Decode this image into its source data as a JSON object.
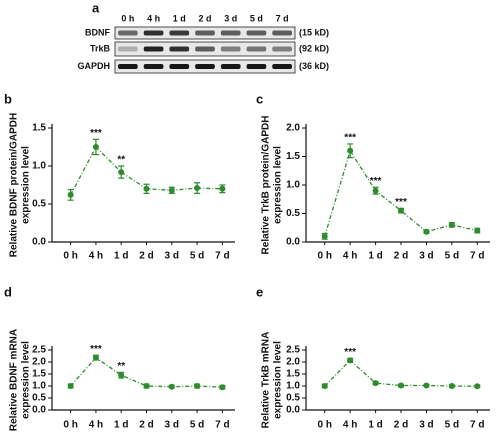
{
  "blot": {
    "panel": "a",
    "lanes": [
      "0 h",
      "4 h",
      "1 d",
      "2 d",
      "3 d",
      "5 d",
      "7 d"
    ],
    "proteins": [
      {
        "name": "BDNF",
        "size": "(15 kD)"
      },
      {
        "name": "TrkB",
        "size": "(92 kD)"
      },
      {
        "name": "GAPDH",
        "size": "(36 kD)"
      }
    ]
  },
  "chart_data": [
    {
      "type": "line",
      "panel": "b",
      "ylabel": [
        "Relative BDNF protein/GAPDH",
        "expression level"
      ],
      "categories": [
        "0 h",
        "4 h",
        "1 d",
        "2 d",
        "3 d",
        "5 d",
        "7 d"
      ],
      "values": [
        0.62,
        1.25,
        0.92,
        0.7,
        0.68,
        0.71,
        0.7
      ],
      "errors": [
        0.07,
        0.1,
        0.08,
        0.06,
        0.04,
        0.07,
        0.05
      ],
      "significance": [
        null,
        "***",
        "**",
        null,
        null,
        null,
        null
      ],
      "color": "#2e8b2e",
      "ylim": [
        0,
        1.5
      ],
      "yticks": [
        {
          "value": 0,
          "label": "0.0"
        },
        0.5,
        {
          "value": 1,
          "label": "1.0"
        },
        1.5
      ]
    },
    {
      "type": "line",
      "panel": "c",
      "ylabel": [
        "Relative TrkB protein/GAPDH",
        "expression level"
      ],
      "categories": [
        "0 h",
        "4 h",
        "1 d",
        "2 d",
        "3 d",
        "5 d",
        "7 d"
      ],
      "values": [
        0.1,
        1.6,
        0.9,
        0.55,
        0.18,
        0.3,
        0.2
      ],
      "errors": [
        0.05,
        0.12,
        0.06,
        0.04,
        0.03,
        0.04,
        0.04
      ],
      "significance": [
        null,
        "***",
        "***",
        "***",
        null,
        null,
        null
      ],
      "color": "#2e8b2e",
      "ylim": [
        0,
        2
      ],
      "yticks": [
        {
          "value": 0,
          "label": "0.0"
        },
        0.5,
        {
          "value": 1,
          "label": "1.0"
        },
        1.5,
        {
          "value": 2,
          "label": "2.0"
        }
      ]
    },
    {
      "type": "line",
      "panel": "d",
      "ylabel": [
        "Relative BDNF mRNA",
        "expression level"
      ],
      "categories": [
        "0 h",
        "4 h",
        "1 d",
        "2 d",
        "3 d",
        "5 d",
        "7 d"
      ],
      "values": [
        1.0,
        2.18,
        1.45,
        1.0,
        0.97,
        1.0,
        0.95
      ],
      "errors": [
        0.08,
        0.1,
        0.12,
        0.08,
        0.05,
        0.08,
        0.07
      ],
      "significance": [
        null,
        "***",
        "**",
        null,
        null,
        null,
        null
      ],
      "color": "#2e8b2e",
      "ylim": [
        0,
        2.5
      ],
      "yticks": [
        {
          "value": 0,
          "label": "0.0"
        },
        0.5,
        {
          "value": 1,
          "label": "1.0"
        },
        1.5,
        {
          "value": 2,
          "label": "2.0"
        },
        2.5
      ]
    },
    {
      "type": "line",
      "panel": "e",
      "ylabel": [
        "Relative TrkB mRNA",
        "expression level"
      ],
      "categories": [
        "0 h",
        "4 h",
        "1 d",
        "2 d",
        "3 d",
        "5 d",
        "7 d"
      ],
      "values": [
        1.0,
        2.07,
        1.12,
        1.02,
        1.02,
        1.0,
        0.99
      ],
      "errors": [
        0.07,
        0.08,
        0.06,
        0.05,
        0.03,
        0.05,
        0.04
      ],
      "significance": [
        null,
        "***",
        null,
        null,
        null,
        null,
        null
      ],
      "color": "#2e8b2e",
      "ylim": [
        0,
        2.5
      ],
      "yticks": [
        {
          "value": 0,
          "label": "0.0"
        },
        0.5,
        {
          "value": 1,
          "label": "1.0"
        },
        1.5,
        {
          "value": 2,
          "label": "2.0"
        },
        2.5
      ]
    }
  ]
}
